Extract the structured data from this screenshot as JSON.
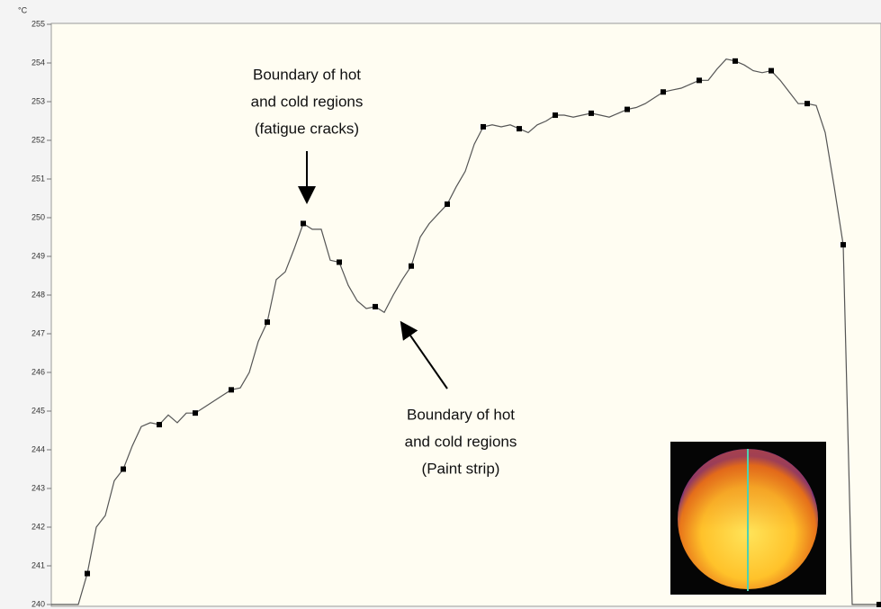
{
  "chart_data": {
    "type": "line",
    "y_label": "°C",
    "x": [
      0,
      1,
      2,
      3,
      4,
      5,
      6,
      7,
      8,
      9,
      10,
      11,
      12,
      13,
      14,
      15,
      16,
      17,
      18,
      19,
      20,
      21,
      22,
      23,
      24,
      25,
      26,
      27,
      28,
      29,
      30,
      31,
      32,
      33,
      34,
      35,
      36,
      37,
      38,
      39,
      40,
      41,
      42,
      43,
      44,
      45,
      46,
      47,
      48,
      49,
      50,
      51,
      52,
      53,
      54,
      55,
      56,
      57,
      58,
      59,
      60,
      61,
      62,
      63,
      64,
      65,
      66,
      67,
      68,
      69,
      70,
      71,
      72,
      73,
      74,
      75,
      76,
      77,
      78,
      79,
      80,
      81,
      82,
      83,
      84,
      85,
      86,
      87,
      88,
      89,
      90,
      91,
      92
    ],
    "xlim": [
      0,
      92
    ],
    "series": [
      {
        "color": "#555555",
        "values": [
          240,
          240,
          240,
          240,
          240.8,
          242.0,
          242.3,
          243.2,
          243.5,
          244.1,
          244.6,
          244.7,
          244.65,
          244.9,
          244.7,
          244.95,
          244.95,
          245.1,
          245.25,
          245.4,
          245.55,
          245.6,
          246.0,
          246.8,
          247.3,
          248.4,
          248.6,
          249.2,
          249.85,
          249.7,
          249.7,
          248.9,
          248.85,
          248.25,
          247.85,
          247.65,
          247.7,
          247.55,
          248.0,
          248.4,
          248.75,
          249.5,
          249.85,
          250.1,
          250.35,
          250.8,
          251.2,
          251.9,
          252.35,
          252.4,
          252.35,
          252.4,
          252.3,
          252.2,
          252.4,
          252.5,
          252.65,
          252.65,
          252.6,
          252.65,
          252.7,
          252.65,
          252.6,
          252.7,
          252.8,
          252.85,
          252.95,
          253.1,
          253.25,
          253.3,
          253.35,
          253.45,
          253.55,
          253.55,
          253.85,
          254.1,
          254.05,
          253.95,
          253.8,
          253.75,
          253.8,
          253.55,
          253.25,
          252.95,
          252.95,
          252.9,
          252.2,
          250.8,
          249.3,
          240,
          240,
          240,
          240
        ]
      }
    ],
    "ylim": [
      240,
      255
    ],
    "yticks": [
      240,
      241,
      242,
      243,
      244,
      245,
      246,
      247,
      248,
      249,
      250,
      251,
      252,
      253,
      254,
      255
    ],
    "annotations": [
      {
        "lines": [
          "Boundary of hot",
          "and cold regions",
          "(fatigue cracks)"
        ]
      },
      {
        "lines": [
          "Boundary of hot",
          "and cold regions",
          "(Paint strip)"
        ]
      }
    ]
  }
}
